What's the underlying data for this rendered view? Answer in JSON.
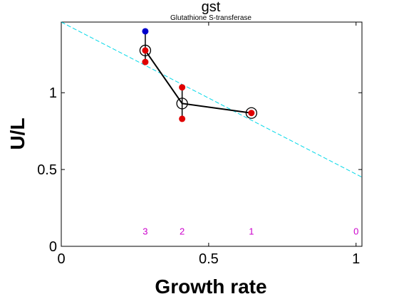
{
  "chart_data": {
    "type": "scatter",
    "title": "gst",
    "subtitle": "Glutathione S-transferase",
    "xlabel": "Growth rate",
    "ylabel": "U/L",
    "xlim": [
      0,
      1.02
    ],
    "ylim": [
      0,
      1.46
    ],
    "xticks": [
      {
        "value": 0,
        "label": "0"
      },
      {
        "value": 0.5,
        "label": "0.5"
      },
      {
        "value": 1,
        "label": "1"
      }
    ],
    "yticks": [
      {
        "value": 0,
        "label": "0"
      },
      {
        "value": 0.5,
        "label": "0.5"
      },
      {
        "value": 1,
        "label": "1"
      }
    ],
    "grid": false,
    "colors": {
      "replicate": "#e00000",
      "outlier": "#0000cc",
      "mean": "#000000",
      "fit": "#00d8e8",
      "condition_label": "#cc00cc"
    },
    "mean_line": {
      "x": [
        0.285,
        0.41,
        0.645
      ],
      "y": [
        1.275,
        0.93,
        0.868
      ]
    },
    "replicates": {
      "x": [
        0.285,
        0.285,
        0.41,
        0.41,
        0.645
      ],
      "y": [
        1.275,
        1.2,
        1.035,
        0.83,
        0.868
      ]
    },
    "outliers": {
      "x": [
        0.285
      ],
      "y": [
        1.4
      ]
    },
    "error_bars": [
      {
        "x": 0.285,
        "low": 1.2,
        "high": 1.4
      },
      {
        "x": 0.41,
        "low": 0.83,
        "high": 1.035
      }
    ],
    "fit_line": {
      "x": [
        0,
        1.02
      ],
      "y": [
        1.46,
        0.45
      ]
    },
    "condition_labels": [
      {
        "label": "3",
        "x": 0.285
      },
      {
        "label": "2",
        "x": 0.41
      },
      {
        "label": "1",
        "x": 0.645
      },
      {
        "label": "0",
        "x": 1.0
      }
    ],
    "condition_label_y": 0.1
  }
}
